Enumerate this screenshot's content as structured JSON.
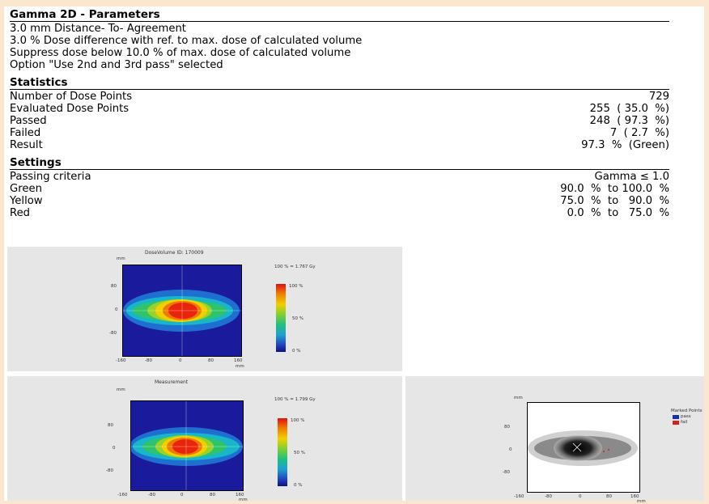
{
  "params": {
    "title": "Gamma 2D - Parameters",
    "lines": [
      "3.0 mm Distance- To- Agreement",
      "3.0 % Dose difference with ref. to max. dose of calculated volume",
      "Suppress dose below 10.0 % of max. dose of calculated volume",
      "Option \"Use 2nd and 3rd pass\" selected"
    ]
  },
  "stats": {
    "title": "Statistics",
    "rows": [
      {
        "label": "Number of Dose Points",
        "value": "729"
      },
      {
        "label": "Evaluated Dose Points",
        "value": "255  ( 35.0  %)"
      },
      {
        "label": "Passed",
        "value": "248  ( 97.3  %)"
      },
      {
        "label": "Failed",
        "value": "7  ( 2.7  %)"
      },
      {
        "label": "Result",
        "value": "97.3  %  (Green)"
      }
    ]
  },
  "settings": {
    "title": "Settings",
    "rows": [
      {
        "label": "Passing criteria",
        "value": "Gamma ≤ 1.0"
      },
      {
        "label": "Green",
        "value": "90.0  %  to 100.0  %"
      },
      {
        "label": "Yellow",
        "value": "75.0  %  to   90.0  %"
      },
      {
        "label": "Red",
        "value": "0.0  %  to   75.0  %"
      }
    ]
  },
  "plots": {
    "top": {
      "title": "DoseVolume ID: 170009",
      "unit": "mm",
      "unit_x": "mm",
      "norm": "100 % = 1.767 Gy",
      "scale": [
        "100 %",
        "50 %",
        "0 %"
      ],
      "yticks": [
        "80",
        "0",
        "-80"
      ],
      "xticks": [
        "-160",
        "-80",
        "0",
        "80",
        "160"
      ]
    },
    "meas": {
      "title": "Measurement",
      "unit": "mm",
      "unit_x": "mm",
      "norm": "100 % = 1.799 Gy",
      "scale": [
        "100 %",
        "50 %",
        "0 %"
      ],
      "yticks": [
        "80",
        "0",
        "-80"
      ],
      "xticks": [
        "-160",
        "-80",
        "0",
        "80",
        "160"
      ]
    },
    "gamma": {
      "unit": "mm",
      "unit_x": "mm",
      "legend_title": "Marked Points",
      "legend": [
        {
          "label": "pass",
          "color": "#1a2fa8"
        },
        {
          "label": "fail",
          "color": "#d02020"
        }
      ],
      "yticks": [
        "80",
        "0",
        "-80"
      ],
      "xticks": [
        "-160",
        "-80",
        "0",
        "80",
        "160"
      ]
    }
  }
}
